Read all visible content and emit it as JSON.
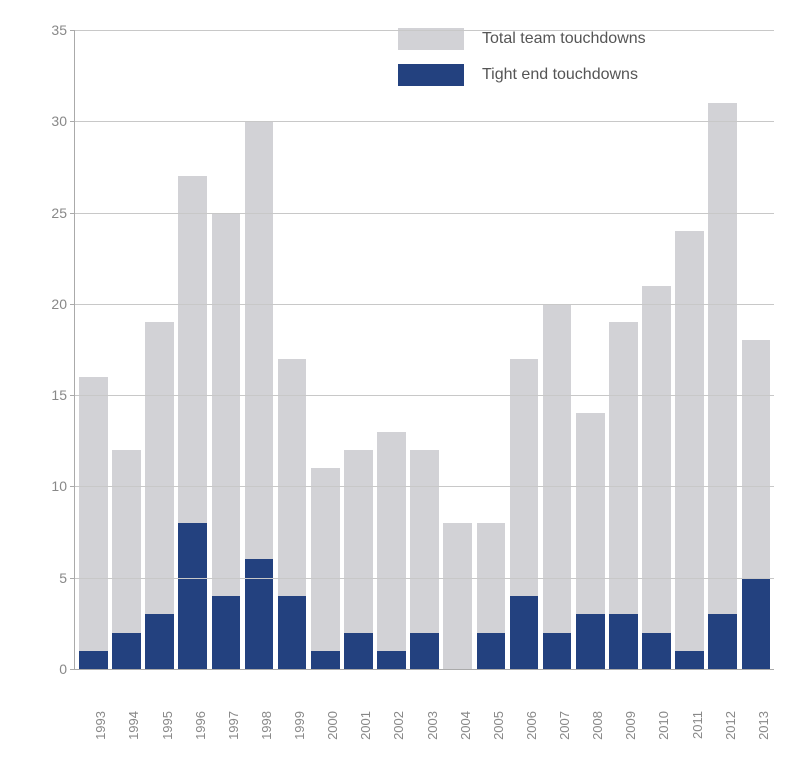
{
  "chart": {
    "type": "bar",
    "background_color": "#ffffff",
    "grid_color": "#c8c8c8",
    "axis_color": "#aaaaaa",
    "tick_label_color": "#888888",
    "label_fontsize": 14,
    "xlim": [
      "1993",
      "2013"
    ],
    "ylim": [
      0,
      35
    ],
    "ytick_step": 5,
    "yticks": [
      0,
      5,
      10,
      15,
      20,
      25,
      30,
      35
    ],
    "bar_width": 0.88,
    "legend": {
      "items": [
        {
          "label": "Total team touchdowns",
          "color": "#d2d2d6"
        },
        {
          "label": "Tight end touchdowns",
          "color": "#23417f"
        }
      ],
      "position": "top-right-inside",
      "label_fontsize": 16,
      "label_color": "#555555"
    },
    "categories": [
      "1993",
      "1994",
      "1995",
      "1996",
      "1997",
      "1998",
      "1999",
      "2000",
      "2001",
      "2002",
      "2003",
      "2004",
      "2005",
      "2006",
      "2007",
      "2008",
      "2009",
      "2010",
      "2011",
      "2012",
      "2013"
    ],
    "series": [
      {
        "name": "Total team touchdowns",
        "color": "#d2d2d6",
        "values": [
          16,
          12,
          19,
          27,
          25,
          30,
          17,
          11,
          12,
          13,
          12,
          8,
          8,
          17,
          20,
          14,
          19,
          21,
          24,
          31,
          18
        ]
      },
      {
        "name": "Tight end touchdowns",
        "color": "#23417f",
        "values": [
          1,
          2,
          3,
          8,
          4,
          6,
          4,
          1,
          2,
          1,
          2,
          0,
          2,
          4,
          2,
          3,
          3,
          2,
          1,
          3,
          5
        ]
      }
    ]
  }
}
